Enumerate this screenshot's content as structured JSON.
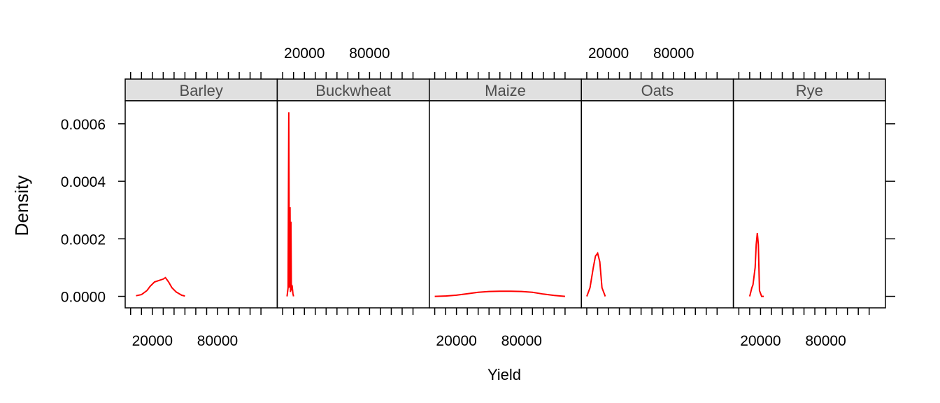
{
  "chart_data": {
    "type": "line",
    "title": "",
    "xlabel": "Yield",
    "ylabel": "Density",
    "xlim": [
      -5000,
      135000
    ],
    "ylim": [
      -4e-05,
      0.00068
    ],
    "x_ticks": [
      0,
      10000,
      20000,
      30000,
      40000,
      50000,
      60000,
      70000,
      80000,
      90000,
      100000,
      110000,
      120000
    ],
    "x_tick_labels": [
      {
        "value": 20000,
        "label": "20000"
      },
      {
        "value": 80000,
        "label": "80000"
      }
    ],
    "y_ticks": [
      {
        "value": 0,
        "label": "0.0000"
      },
      {
        "value": 0.0002,
        "label": "0.0002"
      },
      {
        "value": 0.0004,
        "label": "0.0004"
      },
      {
        "value": 0.0006,
        "label": "0.0006"
      }
    ],
    "line_color": "#ff0000",
    "strip_color": "#e0e0e0",
    "grid": false,
    "panels": [
      {
        "name": "Barley",
        "x": [
          5000,
          10000,
          15000,
          18000,
          22000,
          26000,
          30000,
          32000,
          35000,
          38000,
          42000,
          47000,
          50000
        ],
        "y": [
          2e-06,
          6e-06,
          2e-05,
          3.5e-05,
          5e-05,
          5.5e-05,
          6e-05,
          6.5e-05,
          5e-05,
          3e-05,
          1.5e-05,
          4e-06,
          1e-06
        ]
      },
      {
        "name": "Buckwheat",
        "x": [
          4000,
          5000,
          5600,
          6200,
          6800,
          7200,
          7600,
          8000,
          8400,
          8800,
          9400,
          10000
        ],
        "y": [
          0.0,
          3e-05,
          0.00064,
          3e-05,
          0.00031,
          1.5e-05,
          0.00026,
          2e-05,
          4e-05,
          3.5e-05,
          1e-05,
          0.0
        ]
      },
      {
        "name": "Maize",
        "x": [
          0,
          10000,
          20000,
          30000,
          40000,
          50000,
          60000,
          70000,
          80000,
          90000,
          100000,
          110000,
          120000
        ],
        "y": [
          0.0,
          1e-06,
          4e-06,
          9e-06,
          1.4e-05,
          1.7e-05,
          1.8e-05,
          1.8e-05,
          1.7e-05,
          1.4e-05,
          8e-06,
          3e-06,
          0.0
        ]
      },
      {
        "name": "Oats",
        "x": [
          0,
          3000,
          6000,
          8000,
          10000,
          12000,
          14000,
          17000
        ],
        "y": [
          0.0,
          3e-05,
          0.0001,
          0.00014,
          0.00015,
          0.00012,
          3e-05,
          0.0
        ]
      },
      {
        "name": "Rye",
        "x": [
          10000,
          12000,
          13000,
          15000,
          16000,
          17000,
          18000,
          19000,
          20000,
          21000,
          23000
        ],
        "y": [
          0.0,
          3e-05,
          4e-05,
          0.0001,
          0.00018,
          0.00022,
          0.00018,
          2e-05,
          1e-05,
          0.0,
          0.0
        ]
      }
    ]
  }
}
